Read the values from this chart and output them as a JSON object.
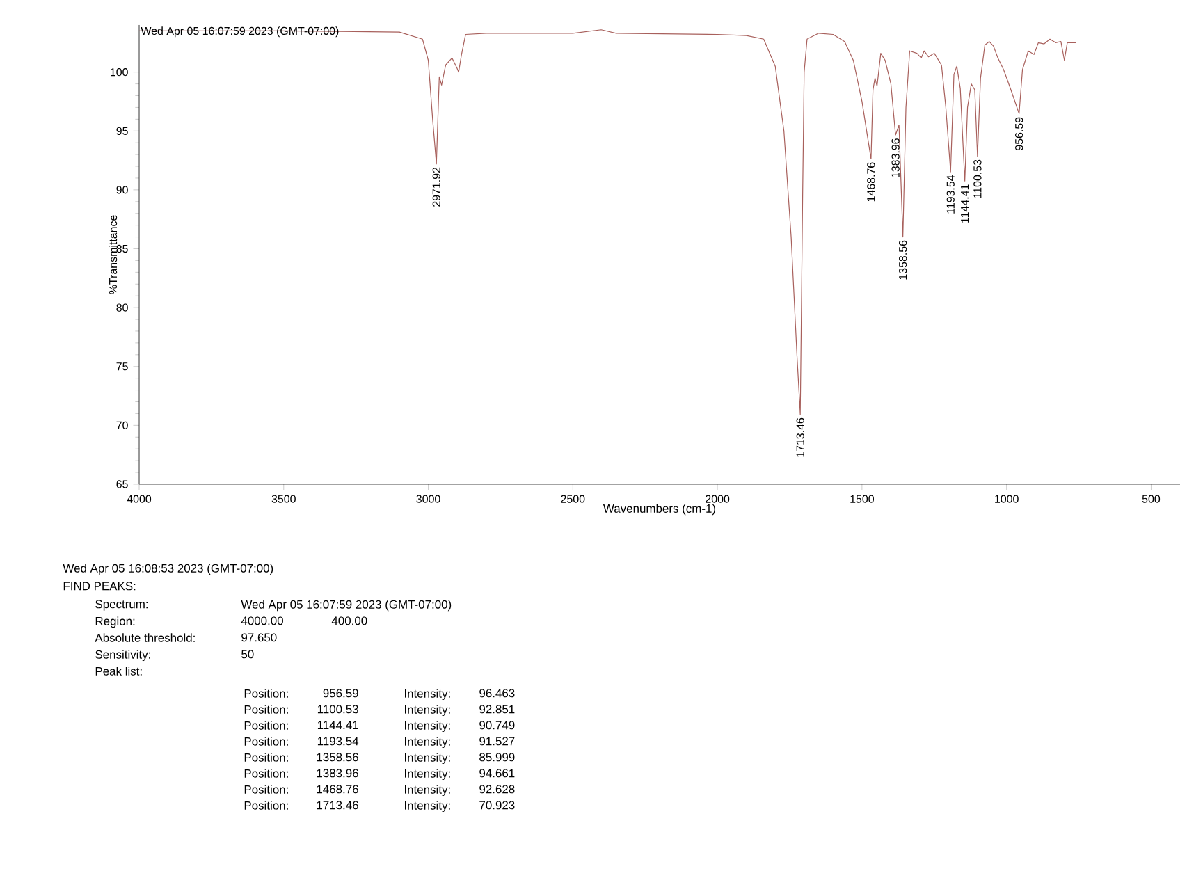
{
  "chart_data": {
    "type": "line",
    "title": "Wed Apr 05 16:07:59 2023 (GMT-07:00)",
    "xlabel": "Wavenumbers (cm-1)",
    "ylabel": "%Transmittance",
    "series": [
      {
        "color": "#a8605c",
        "x": [
          4000,
          3500,
          3100,
          3020,
          3000,
          2985,
          2971.92,
          2962,
          2954,
          2940,
          2918,
          2900,
          2895,
          2885,
          2871,
          2800,
          2500,
          2402,
          2350,
          2000,
          1900,
          1840,
          1800,
          1770,
          1745,
          1725,
          1713.46,
          1705,
          1700,
          1690,
          1650,
          1600,
          1560,
          1530,
          1500,
          1468.76,
          1462,
          1455,
          1448,
          1435,
          1420,
          1400,
          1383.96,
          1372,
          1358.56,
          1348,
          1335,
          1310,
          1295,
          1285,
          1270,
          1250,
          1225,
          1210,
          1193.54,
          1182,
          1172,
          1160,
          1144.41,
          1135,
          1122,
          1110,
          1100.53,
          1090,
          1075,
          1060,
          1045,
          1030,
          1010,
          985,
          956.59,
          945,
          925,
          905,
          890,
          870,
          850,
          830,
          812,
          800,
          790,
          760
        ],
        "values": [
          103.5,
          103.5,
          103.4,
          102.8,
          101,
          96,
          92.2,
          99.6,
          98.9,
          100.6,
          101.2,
          100.3,
          100.0,
          101.5,
          103.2,
          103.3,
          103.3,
          103.6,
          103.3,
          103.2,
          103.1,
          102.8,
          100.5,
          95,
          86,
          76,
          70.923,
          90,
          100,
          102.8,
          103.3,
          103.2,
          102.6,
          101,
          97.5,
          92.628,
          98.5,
          99.5,
          98.8,
          101.6,
          101,
          99,
          94.661,
          95.5,
          85.999,
          97,
          101.8,
          101.6,
          101.2,
          101.8,
          101.3,
          101.6,
          100.6,
          97,
          91.527,
          99.8,
          100.5,
          98.6,
          90.749,
          97,
          99,
          98.5,
          92.851,
          99.5,
          102.3,
          102.6,
          102.2,
          101.2,
          100.2,
          98.5,
          96.463,
          100.2,
          101.8,
          101.5,
          102.5,
          102.4,
          102.8,
          102.5,
          102.6,
          101,
          102.5,
          102.5
        ]
      }
    ],
    "xlim": [
      4000,
      400
    ],
    "xticks": [
      4000,
      3500,
      3000,
      2500,
      2000,
      1500,
      1000,
      500
    ],
    "ylim": [
      65,
      104
    ],
    "yticks": [
      65,
      70,
      75,
      80,
      85,
      90,
      95,
      100
    ],
    "marker": "none",
    "line_style": "solid",
    "annotations": [
      {
        "text": "2971.92",
        "x": 2971.92,
        "y": 92.2
      },
      {
        "text": "1713.46",
        "x": 1713.46,
        "y": 70.923
      },
      {
        "text": "1468.76",
        "x": 1468.76,
        "y": 92.628
      },
      {
        "text": "1383.96",
        "x": 1383.96,
        "y": 94.661
      },
      {
        "text": "1358.56",
        "x": 1358.56,
        "y": 85.999
      },
      {
        "text": "1193.54",
        "x": 1193.54,
        "y": 91.527
      },
      {
        "text": "1144.41",
        "x": 1144.41,
        "y": 90.749
      },
      {
        "text": "1100.53",
        "x": 1100.53,
        "y": 92.851
      },
      {
        "text": "956.59",
        "x": 956.59,
        "y": 96.463
      },
      "Wed Apr 05 16:08:53 2023 (GMT-07:00)",
      "FIND PEAKS:",
      "Spectrum:",
      "Wed Apr 05 16:07:59 2023 (GMT-07:00)",
      "Region:",
      "4000.00",
      "400.00",
      "Absolute threshold:",
      "97.650",
      "Sensitivity:",
      "50",
      "Peak list:",
      "Position:",
      "956.59",
      "Intensity:",
      "96.463",
      "Position:",
      "1100.53",
      "Intensity:",
      "92.851",
      "Position:",
      "1144.41",
      "Intensity:",
      "90.749",
      "Position:",
      "1193.54",
      "Intensity:",
      "91.527",
      "Position:",
      "1358.56",
      "Intensity:",
      "85.999",
      "Position:",
      "1383.96",
      "Intensity:",
      "94.661",
      "Position:",
      "1468.76",
      "Intensity:",
      "92.628",
      "Position:",
      "1713.46",
      "Intensity:",
      "70.923"
    ]
  }
}
